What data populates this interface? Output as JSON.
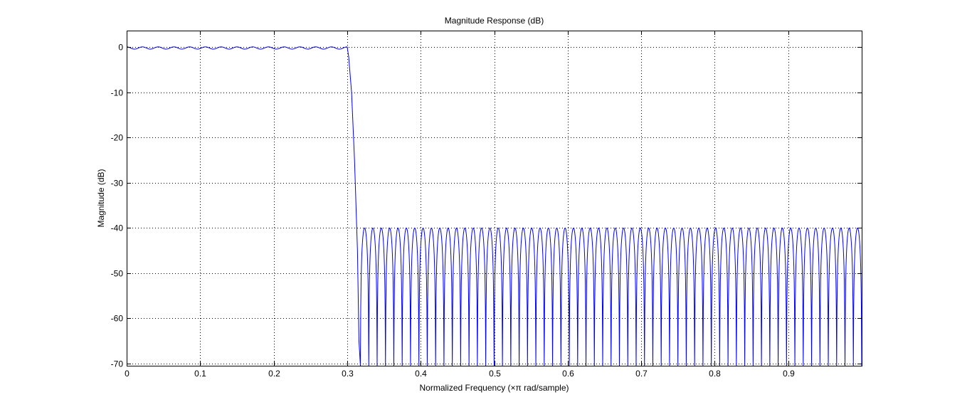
{
  "chart_data": {
    "type": "line",
    "title": "Magnitude Response (dB)",
    "xlabel": "Normalized Frequency  (×π rad/sample)",
    "ylabel": "Magnitude (dB)",
    "xlim": [
      0,
      1
    ],
    "ylim": [
      -70.5,
      3.7
    ],
    "x_ticks": [
      0,
      0.1,
      0.2,
      0.3,
      0.4,
      0.5,
      0.6,
      0.7,
      0.8,
      0.9
    ],
    "x_tick_labels": [
      "0",
      "0.1",
      "0.2",
      "0.3",
      "0.4",
      "0.5",
      "0.6",
      "0.7",
      "0.8",
      "0.9"
    ],
    "y_ticks": [
      0,
      -10,
      -20,
      -30,
      -40,
      -50,
      -60,
      -70
    ],
    "y_tick_labels": [
      "0",
      "-10",
      "-20",
      "-30",
      "-40",
      "-50",
      "-60",
      "-70"
    ],
    "grid": true,
    "grid_style": "dotted",
    "series_color": "#0000ff",
    "series": [
      {
        "description": "equiripple lowpass FIR magnitude response",
        "passband": {
          "x_range": [
            0,
            0.3
          ],
          "ripple_db": 0.5,
          "ripple_count": 14
        },
        "transition_band": {
          "x": [
            0.3,
            0.302,
            0.306,
            0.31,
            0.314,
            0.316,
            0.318
          ],
          "y": [
            0,
            -2,
            -10,
            -25,
            -45,
            -65,
            -70.5
          ]
        },
        "stopband": {
          "x_range": [
            0.318,
            1.0
          ],
          "peak_level_db": -40,
          "lobe_count": 60,
          "null_floor_db": -70.5
        }
      }
    ]
  }
}
